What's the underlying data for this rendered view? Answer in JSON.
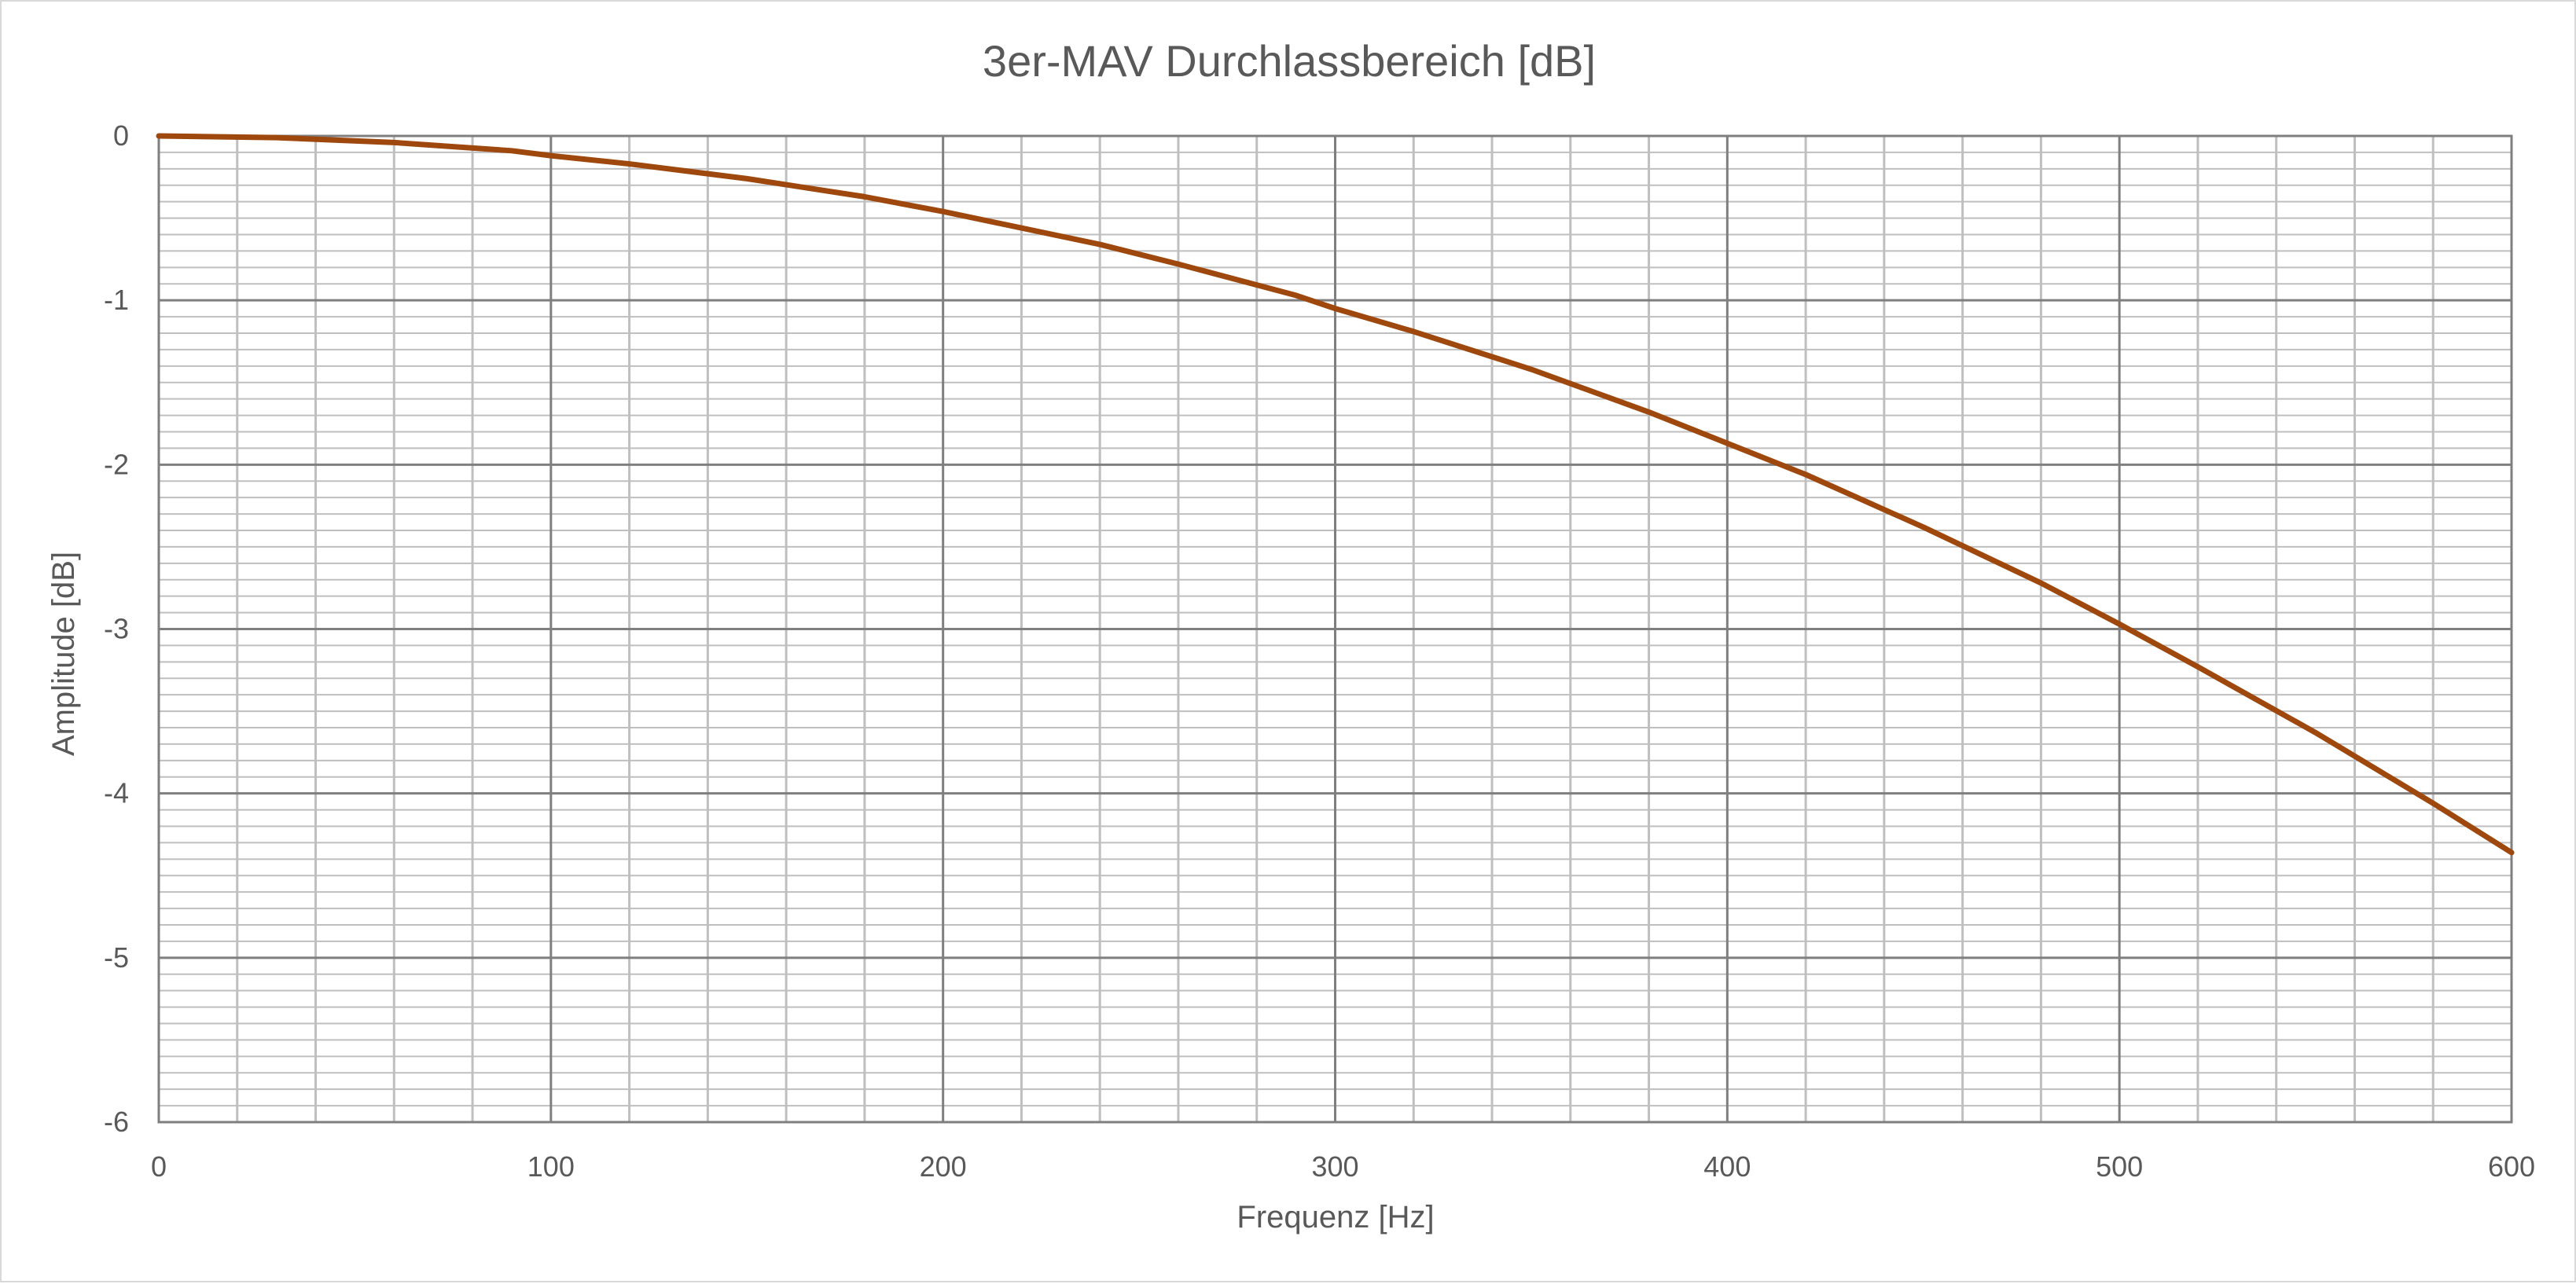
{
  "chart_data": {
    "type": "line",
    "title": "3er-MAV Durchlassbereich [dB]",
    "xlabel": "Frequenz [Hz]",
    "ylabel": "Amplitude [dB]",
    "xlim": [
      0,
      600
    ],
    "ylim": [
      -6,
      0
    ],
    "x_ticks": [
      0,
      100,
      200,
      300,
      400,
      500,
      600
    ],
    "x_tick_labels": [
      "0",
      "100",
      "200",
      "300",
      "400",
      "500",
      "600"
    ],
    "y_ticks": [
      0,
      -1,
      -2,
      -3,
      -4,
      -5,
      -6
    ],
    "y_tick_labels": [
      "0",
      "-1",
      "-2",
      "-3",
      "-4",
      "-5",
      "-6"
    ],
    "x_minor_step": 20,
    "y_minor_step": 0.1,
    "grid": true,
    "legend": "none",
    "colors": {
      "line": "#9e480e",
      "major_grid": "#7f7f7f",
      "minor_grid": "#bfbfbf",
      "text": "#595959",
      "border": "#d9d9d9"
    },
    "series": [
      {
        "x": [
          0,
          30,
          60,
          90,
          100,
          120,
          150,
          180,
          200,
          240,
          260,
          290,
          300,
          320,
          350,
          380,
          400,
          420,
          450,
          480,
          500,
          520,
          550,
          580,
          600
        ],
        "y": [
          0,
          -0.01,
          -0.04,
          -0.09,
          -0.12,
          -0.17,
          -0.26,
          -0.37,
          -0.46,
          -0.66,
          -0.78,
          -0.97,
          -1.05,
          -1.19,
          -1.42,
          -1.68,
          -1.87,
          -2.06,
          -2.38,
          -2.72,
          -2.97,
          -3.23,
          -3.63,
          -4.06,
          -4.36
        ]
      }
    ]
  }
}
